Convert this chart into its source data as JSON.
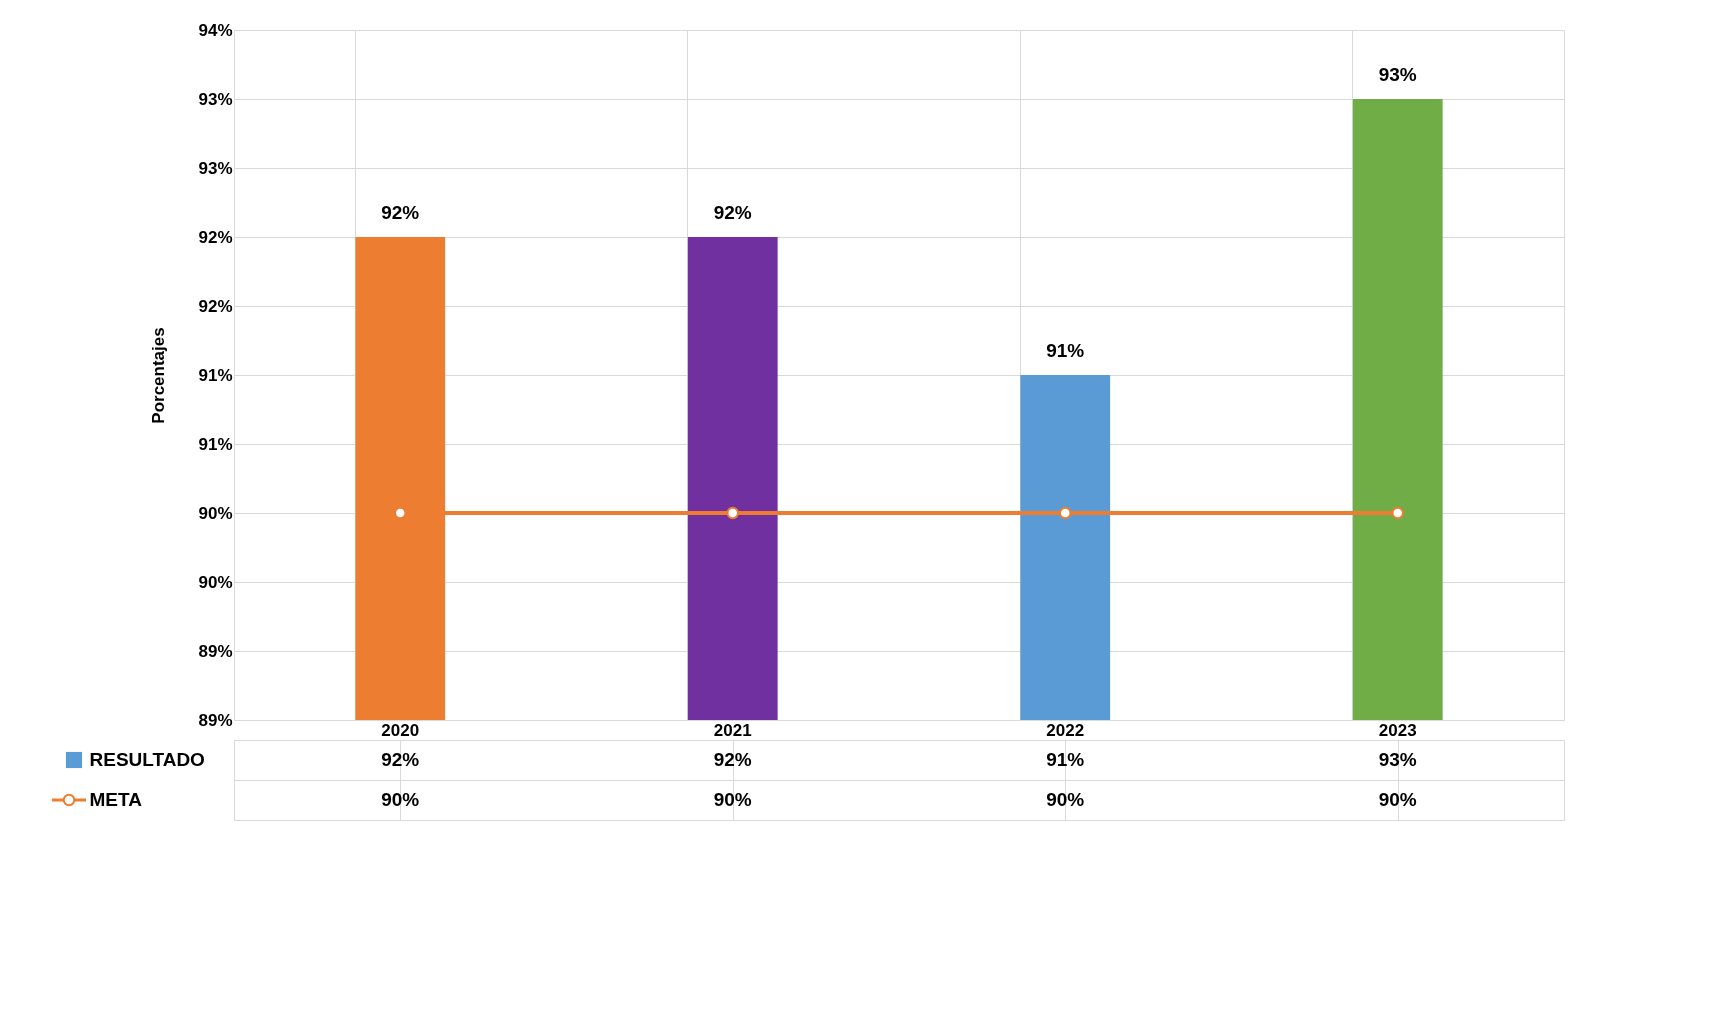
{
  "chart_data": {
    "type": "bar",
    "ylabel": "Porcentajes",
    "categories": [
      "2020",
      "2021",
      "2022",
      "2023"
    ],
    "series": [
      {
        "name": "RESULTADO",
        "color": "#5b9bd5",
        "colors": [
          "#ed7d31",
          "#7030a0",
          "#5b9bd5",
          "#70ad47"
        ],
        "values": [
          92.25,
          92.25,
          91.25,
          93.25
        ],
        "value_labels": [
          "92%",
          "92%",
          "91%",
          "93%"
        ]
      },
      {
        "name": "META",
        "type": "line",
        "color": "#ed7d31",
        "marker": "circle",
        "values": [
          90.25,
          90.25,
          90.25,
          90.25
        ],
        "value_labels": [
          "90%",
          "90%",
          "90%",
          "90%"
        ]
      }
    ],
    "ylim": [
      88.75,
      93.75
    ],
    "yticks": [
      {
        "value": 88.75,
        "label": "89%"
      },
      {
        "value": 89.25,
        "label": "89%"
      },
      {
        "value": 89.75,
        "label": "90%"
      },
      {
        "value": 90.25,
        "label": "90%"
      },
      {
        "value": 90.75,
        "label": "91%"
      },
      {
        "value": 91.25,
        "label": "91%"
      },
      {
        "value": 91.75,
        "label": "92%"
      },
      {
        "value": 92.25,
        "label": "92%"
      },
      {
        "value": 92.75,
        "label": "93%"
      },
      {
        "value": 93.25,
        "label": "93%"
      },
      {
        "value": 93.75,
        "label": "94%"
      }
    ],
    "grid": true,
    "legend": "bottom"
  }
}
